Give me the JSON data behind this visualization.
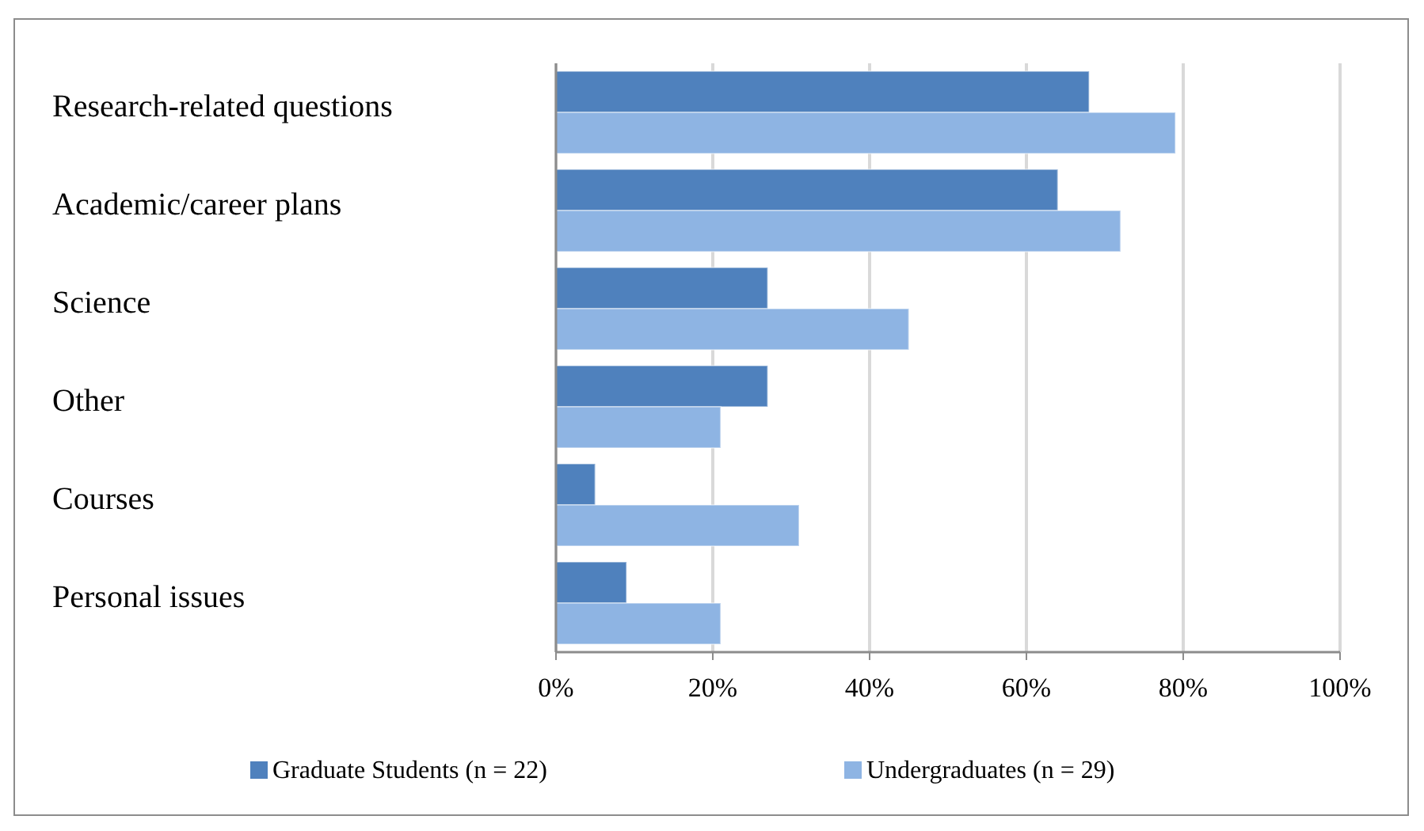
{
  "chart_data": {
    "type": "bar",
    "orientation": "horizontal",
    "categories": [
      "Research-related questions",
      "Academic/career plans",
      "Science",
      "Other",
      "Courses",
      "Personal issues"
    ],
    "series": [
      {
        "name": "Graduate Students  (n = 22)",
        "color": "#4f81bd",
        "values": [
          68,
          64,
          27,
          27,
          5,
          9
        ]
      },
      {
        "name": "Undergraduates  (n = 29)",
        "color": "#8eb4e3",
        "values": [
          79,
          72,
          45,
          21,
          31,
          21
        ]
      }
    ],
    "xlim": [
      0,
      100
    ],
    "xticks": [
      {
        "value": 0,
        "label": "0%"
      },
      {
        "value": 20,
        "label": "20%"
      },
      {
        "value": 40,
        "label": "40%"
      },
      {
        "value": 60,
        "label": "60%"
      },
      {
        "value": 80,
        "label": "80%"
      },
      {
        "value": 100,
        "label": "100%"
      }
    ],
    "grid": "x",
    "legend": "bottom"
  }
}
